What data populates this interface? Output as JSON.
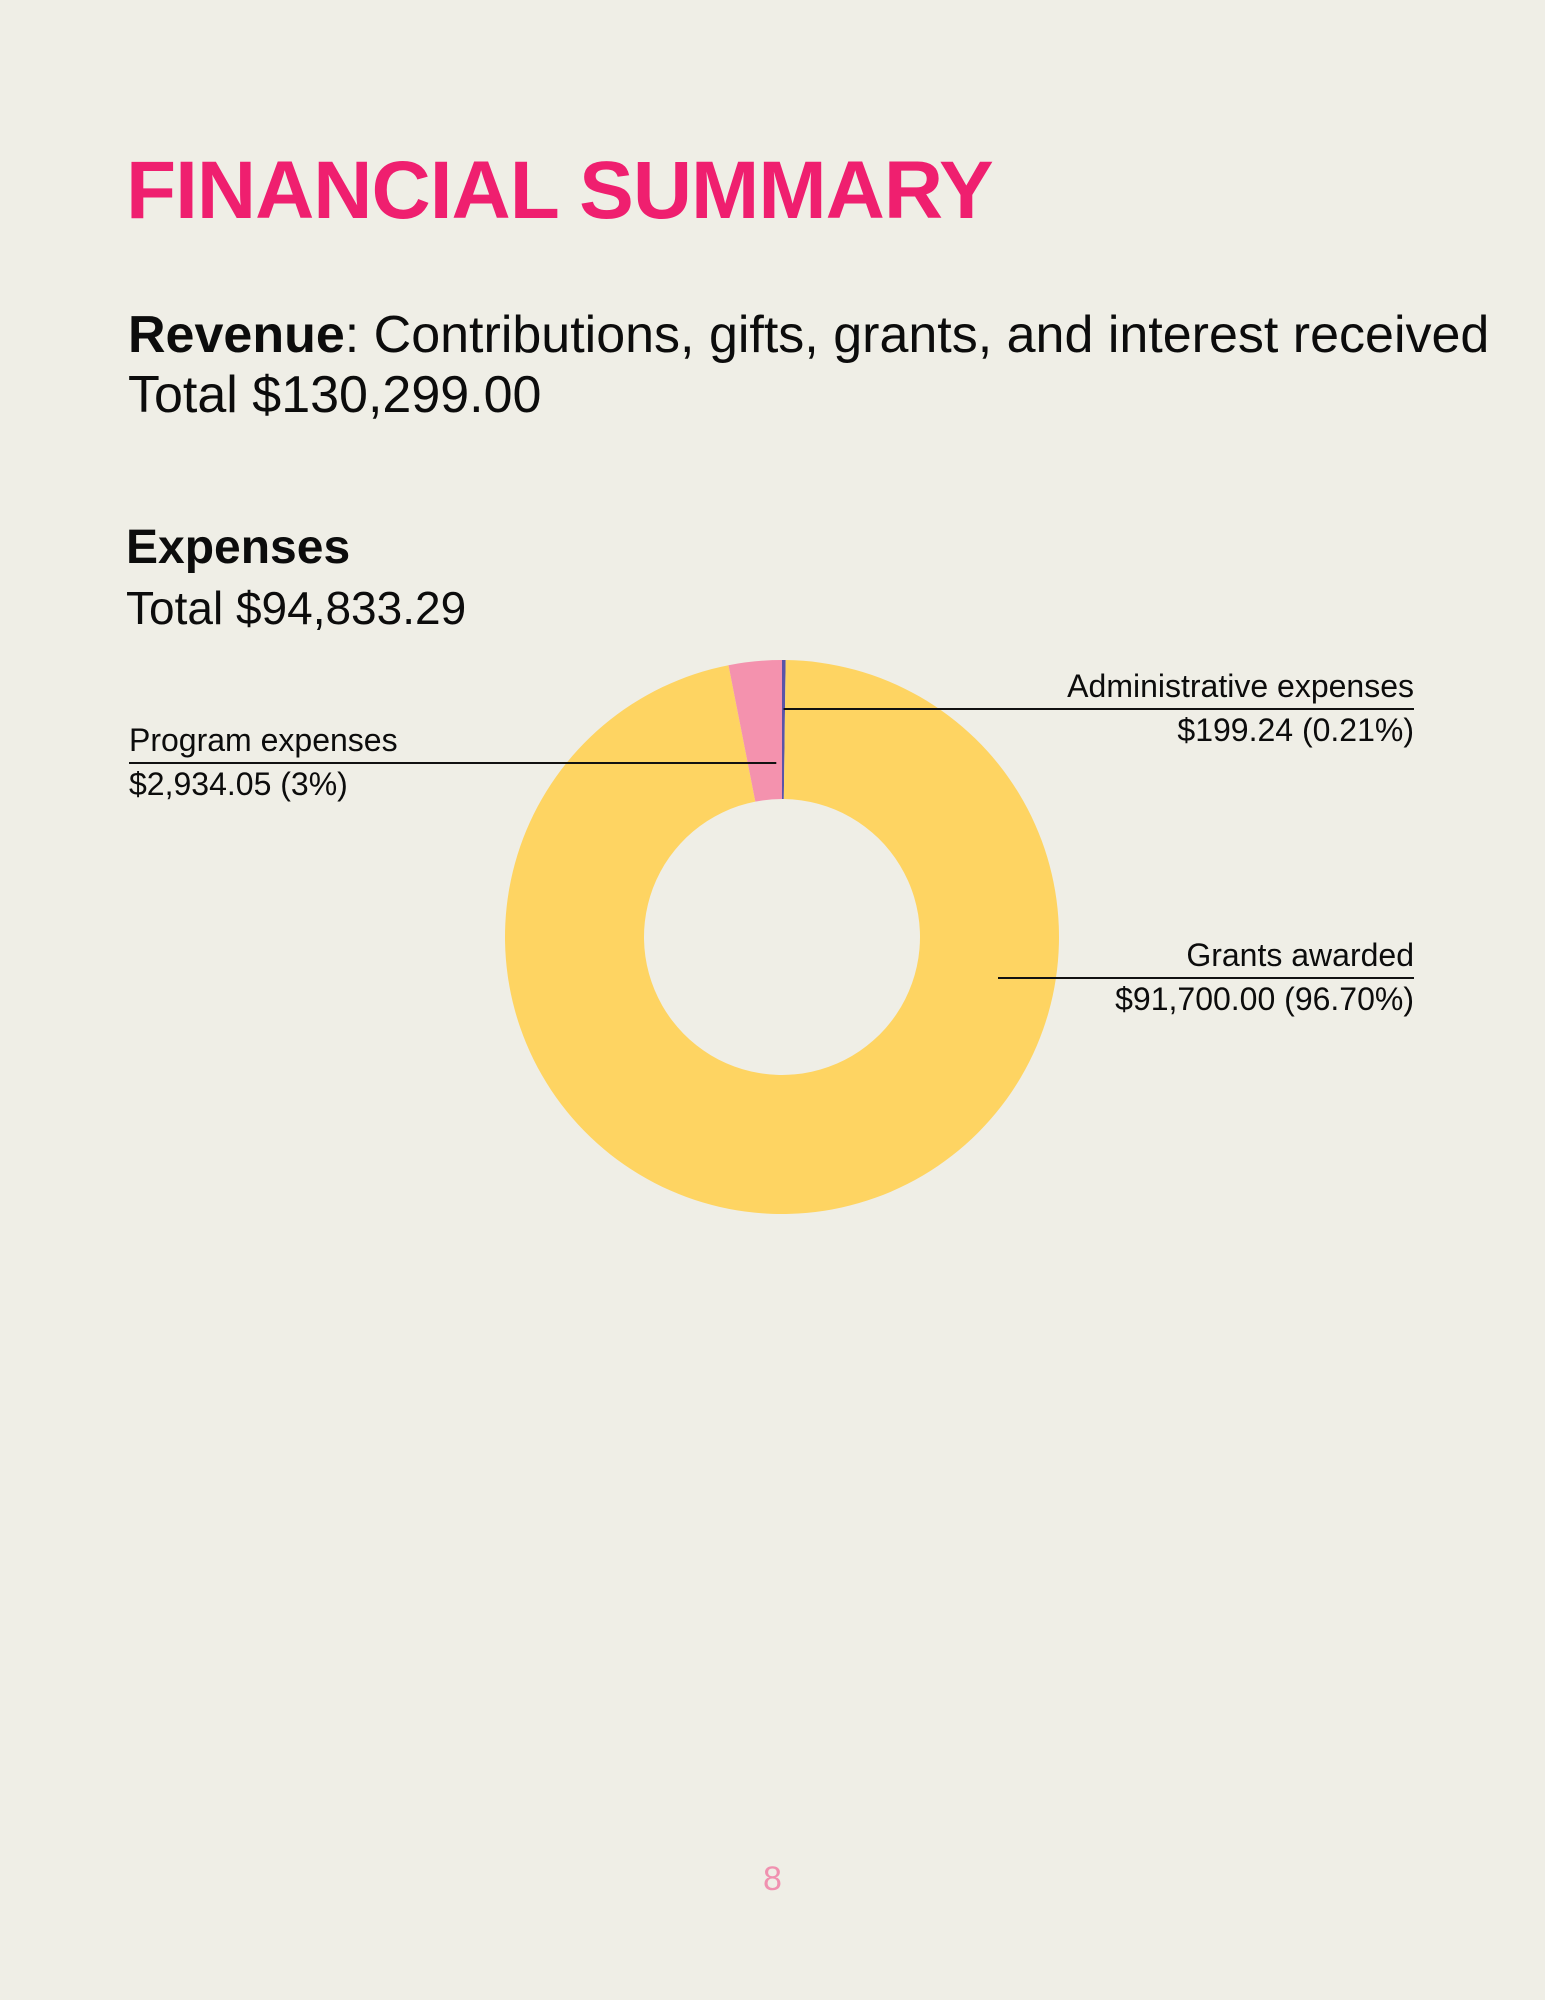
{
  "colors": {
    "accent": "#ef1f6f",
    "background": "#efeee6",
    "text": "#0c0c0c",
    "page_number": "#f091b0"
  },
  "page": {
    "title": "FINANCIAL SUMMARY",
    "revenue": {
      "label": "Revenue",
      "description": ": Contributions, gifts, grants, and interest received",
      "total": "Total $130,299.00"
    },
    "expenses": {
      "heading": "Expenses",
      "total": "Total $94,833.29"
    },
    "page_number": "8"
  },
  "chart_data": {
    "type": "pie",
    "style": "donut",
    "slices": [
      {
        "label": "Administrative expenses",
        "value": 199.24,
        "display_value": "$199.24 (0.21%)",
        "color": "#5a54a8"
      },
      {
        "label": "Grants awarded",
        "value": 91700.0,
        "display_value": "$91,700.00 (96.70%)",
        "color": "#fed462"
      },
      {
        "label": "Program expenses",
        "value": 2934.05,
        "display_value": "$2,934.05 (3%)",
        "color": "#f492ae"
      }
    ],
    "start_angle_deg": 0,
    "direction": "clockwise"
  }
}
